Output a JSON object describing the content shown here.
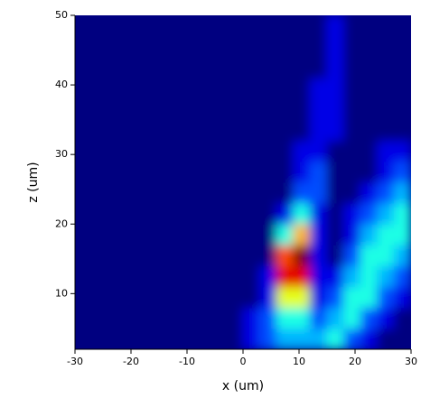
{
  "chart_data": {
    "type": "heatmap",
    "xlabel": "x (um)",
    "ylabel": "z (um)",
    "colormap": "jet",
    "zlim": [
      0,
      10
    ],
    "xlim": [
      -30,
      30
    ],
    "ylim": [
      2,
      50
    ],
    "xticks": [
      -30,
      -20,
      -10,
      0,
      10,
      20,
      30
    ],
    "yticks": [
      10,
      20,
      30,
      40,
      50
    ],
    "x": [
      -28.5,
      -25.5,
      -22.5,
      -19.5,
      -16.5,
      -13.5,
      -10.5,
      -7.5,
      -4.5,
      -1.5,
      1.5,
      4.5,
      7.5,
      10.5,
      13.5,
      16.5,
      19.5,
      22.5,
      25.5,
      28.5
    ],
    "y": [
      3.5,
      6.5,
      9.5,
      12.5,
      15.5,
      18.5,
      21.5,
      24.5,
      27.5,
      30.5,
      33.5,
      36.5,
      39.5,
      42.5,
      45.5,
      48.5
    ],
    "z": [
      [
        0,
        0,
        0,
        0,
        0,
        0,
        0,
        0,
        0,
        0,
        1,
        2,
        3,
        3,
        3,
        4,
        2,
        1,
        0,
        0
      ],
      [
        0,
        0,
        0,
        0,
        0,
        0,
        0,
        0,
        0,
        0,
        1,
        2,
        4,
        4,
        2,
        3,
        4,
        2,
        1,
        0
      ],
      [
        0,
        0,
        0,
        0,
        0,
        0,
        0,
        0,
        0,
        0,
        0,
        1,
        6,
        6,
        1,
        2,
        4,
        4,
        2,
        1
      ],
      [
        0,
        0,
        0,
        0,
        0,
        0,
        0,
        0,
        0,
        0,
        0,
        1,
        9,
        9,
        1,
        1,
        3,
        4,
        3,
        2
      ],
      [
        0,
        0,
        0,
        0,
        0,
        0,
        0,
        0,
        0,
        0,
        0,
        0,
        8,
        10,
        1,
        0,
        2,
        4,
        4,
        3
      ],
      [
        0,
        0,
        0,
        0,
        0,
        0,
        0,
        0,
        0,
        0,
        0,
        0,
        4,
        7,
        1,
        0,
        1,
        3,
        4,
        4
      ],
      [
        0,
        0,
        0,
        0,
        0,
        0,
        0,
        0,
        0,
        0,
        0,
        0,
        1,
        4,
        1,
        0,
        1,
        2,
        3,
        4
      ],
      [
        0,
        0,
        0,
        0,
        0,
        0,
        0,
        0,
        0,
        0,
        0,
        0,
        0,
        2,
        2,
        0,
        0,
        1,
        2,
        3
      ],
      [
        0,
        0,
        0,
        0,
        0,
        0,
        0,
        0,
        0,
        0,
        0,
        0,
        0,
        1,
        2,
        0,
        0,
        0,
        1,
        2
      ],
      [
        0,
        0,
        0,
        0,
        0,
        0,
        0,
        0,
        0,
        0,
        0,
        0,
        0,
        1,
        1,
        0,
        0,
        0,
        1,
        1
      ],
      [
        0,
        0,
        0,
        0,
        0,
        0,
        0,
        0,
        0,
        0,
        0,
        0,
        0,
        0,
        1,
        1,
        0,
        0,
        0,
        0
      ],
      [
        0,
        0,
        0,
        0,
        0,
        0,
        0,
        0,
        0,
        0,
        0,
        0,
        0,
        0,
        1,
        1,
        0,
        0,
        0,
        0
      ],
      [
        0,
        0,
        0,
        0,
        0,
        0,
        0,
        0,
        0,
        0,
        0,
        0,
        0,
        0,
        1,
        1,
        0,
        0,
        0,
        0
      ],
      [
        0,
        0,
        0,
        0,
        0,
        0,
        0,
        0,
        0,
        0,
        0,
        0,
        0,
        0,
        0,
        1,
        0,
        0,
        0,
        0
      ],
      [
        0,
        0,
        0,
        0,
        0,
        0,
        0,
        0,
        0,
        0,
        0,
        0,
        0,
        0,
        0,
        1,
        0,
        0,
        0,
        0
      ],
      [
        0,
        0,
        0,
        0,
        0,
        0,
        0,
        0,
        0,
        0,
        0,
        0,
        0,
        0,
        0,
        1,
        0,
        0,
        0,
        0
      ]
    ]
  }
}
